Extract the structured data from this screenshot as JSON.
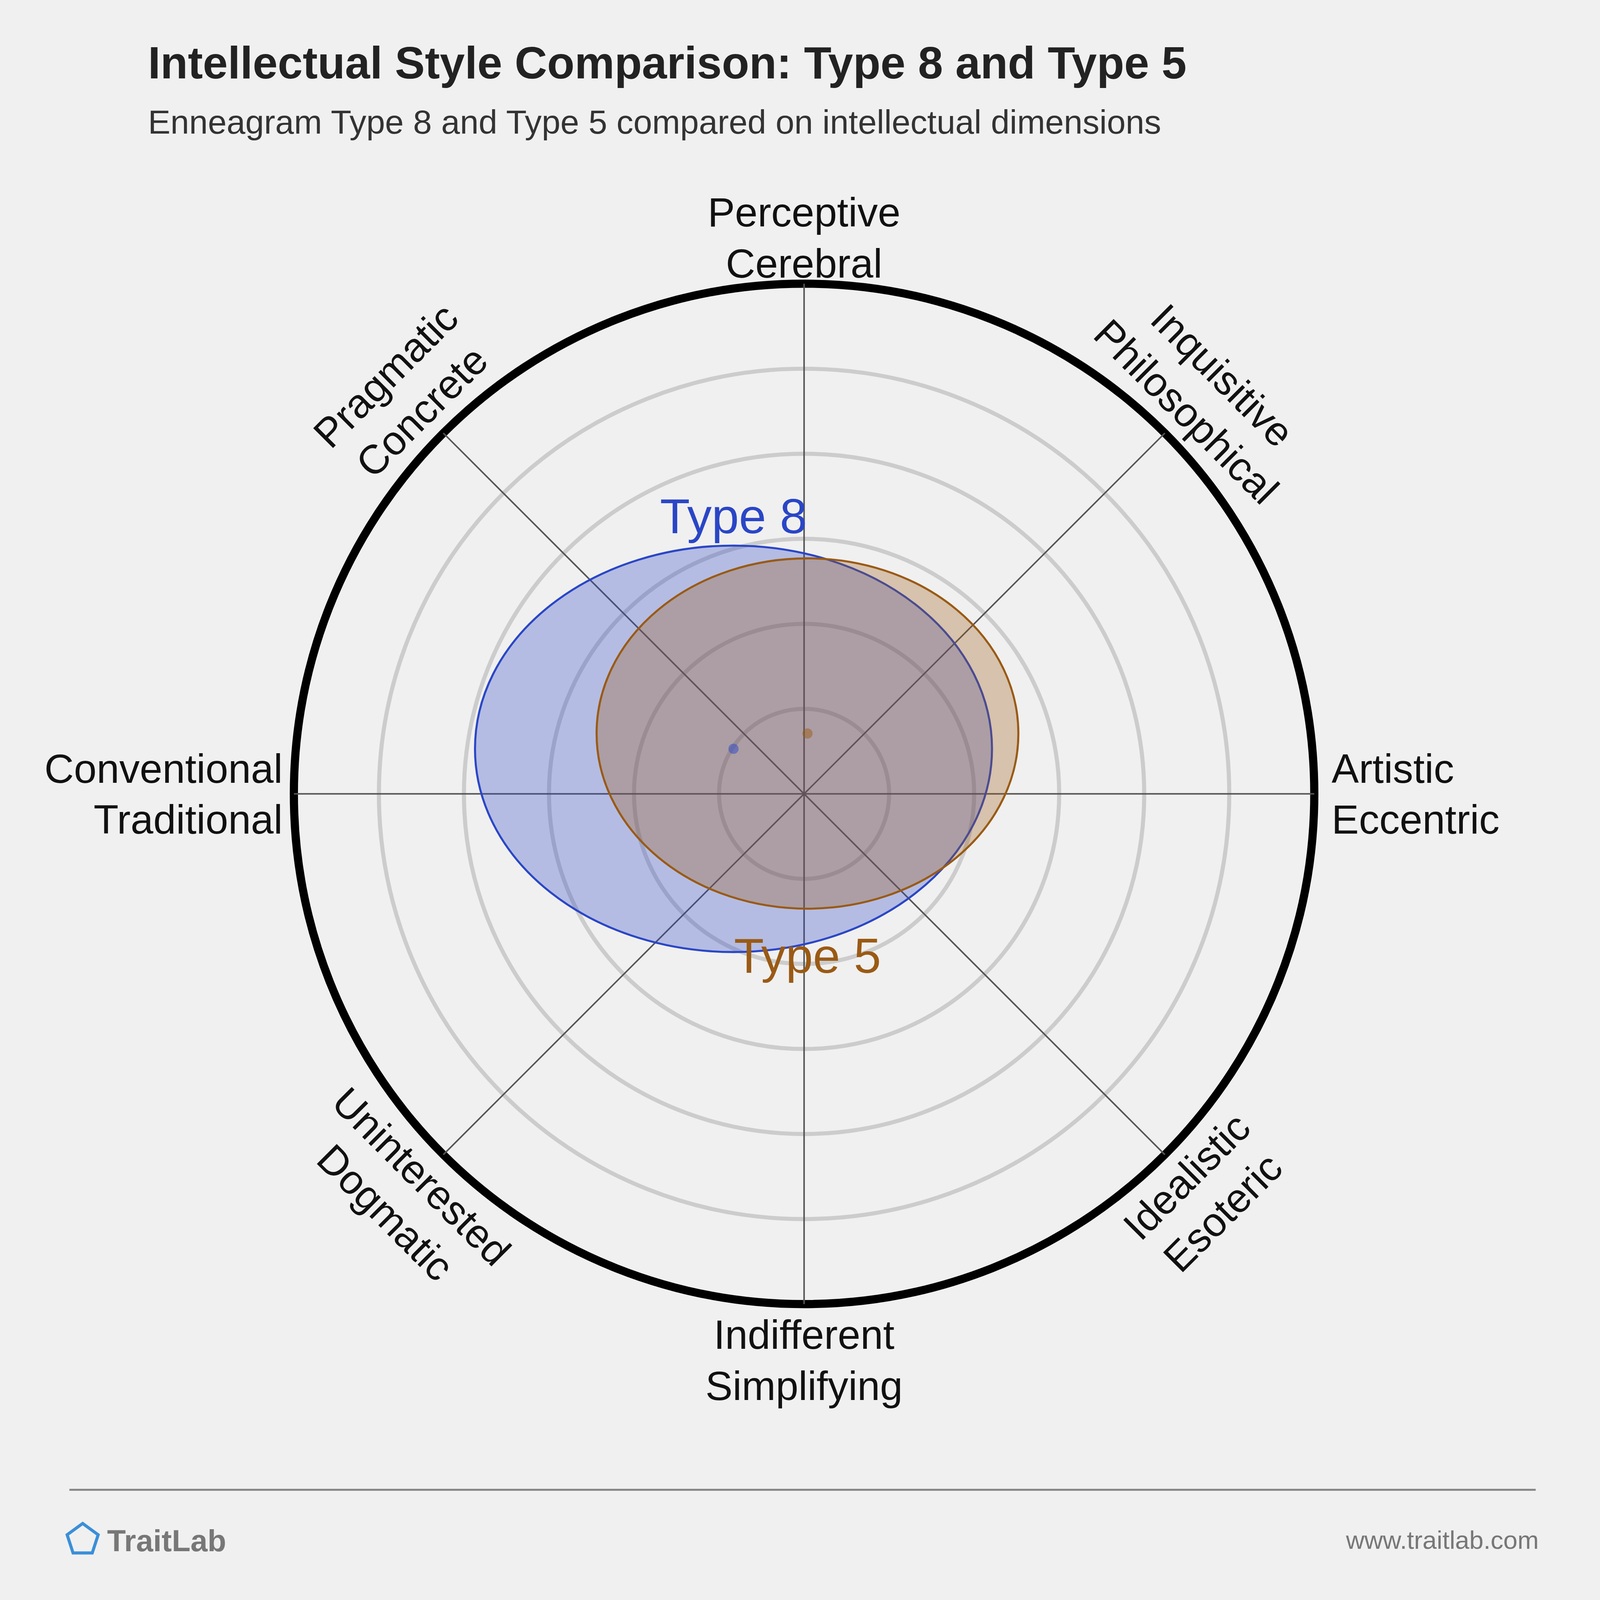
{
  "chart_data": {
    "type": "ellipse",
    "title": "Intellectual Style Comparison: Type 8 and Type 5",
    "subtitle": "Enneagram Type 8 and Type 5 compared on intellectual dimensions",
    "axes": [
      {
        "label": [
          "Perceptive",
          "Cerebral"
        ]
      },
      {
        "label": [
          "Inquisitive",
          "Philosophical"
        ]
      },
      {
        "label": [
          "Artistic",
          "Eccentric"
        ]
      },
      {
        "label": [
          "Idealistic",
          "Esoteric"
        ]
      },
      {
        "label": [
          "Indifferent",
          "Simplifying"
        ]
      },
      {
        "label": [
          "Uninterested",
          "Dogmatic"
        ]
      },
      {
        "label": [
          "Conventional",
          "Traditional"
        ]
      },
      {
        "label": [
          "Pragmatic",
          "Concrete"
        ]
      }
    ],
    "rlim": [
      0,
      6
    ],
    "rticks": [
      1,
      2,
      3,
      4,
      5,
      6
    ],
    "tick_labels": false,
    "grid": true,
    "series": [
      {
        "name": "Type 8",
        "color": "#2a46c6",
        "x": -0.83,
        "y": 0.53,
        "x_radius": 3.04,
        "y_radius": 2.39
      },
      {
        "name": "Type 5",
        "color": "#9a5a14",
        "x": 0.04,
        "y": 0.71,
        "x_radius": 2.48,
        "y_radius": 2.06
      }
    ],
    "footer": {
      "brand": "TraitLab",
      "url": "www.traitlab.com"
    }
  }
}
